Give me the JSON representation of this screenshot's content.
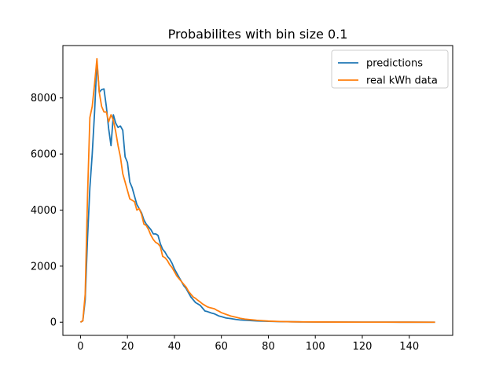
{
  "chart_data": {
    "type": "line",
    "title": "Probabilites with bin size 0.1",
    "xlabel": "",
    "ylabel": "",
    "xlim": [
      -7.5,
      158.5
    ],
    "ylim": [
      -470,
      9870
    ],
    "x_ticks": [
      0,
      20,
      40,
      60,
      80,
      100,
      120,
      140
    ],
    "y_ticks": [
      0,
      2000,
      4000,
      6000,
      8000
    ],
    "grid": false,
    "legend": "top-right",
    "series": [
      {
        "name": "predictions",
        "color": "#1f77b4",
        "points": [
          [
            0,
            0
          ],
          [
            1,
            50
          ],
          [
            2,
            800
          ],
          [
            3,
            3000
          ],
          [
            4,
            4800
          ],
          [
            5,
            6000
          ],
          [
            6,
            7500
          ],
          [
            7,
            9300
          ],
          [
            8,
            8200
          ],
          [
            9,
            8300
          ],
          [
            10,
            8320
          ],
          [
            11,
            7700
          ],
          [
            12,
            6900
          ],
          [
            13,
            6300
          ],
          [
            14,
            7400
          ],
          [
            15,
            7100
          ],
          [
            16,
            6950
          ],
          [
            17,
            7000
          ],
          [
            18,
            6850
          ],
          [
            19,
            5900
          ],
          [
            20,
            5700
          ],
          [
            21,
            5000
          ],
          [
            22,
            4800
          ],
          [
            23,
            4500
          ],
          [
            24,
            4200
          ],
          [
            25,
            4050
          ],
          [
            26,
            3900
          ],
          [
            27,
            3650
          ],
          [
            28,
            3500
          ],
          [
            29,
            3400
          ],
          [
            30,
            3300
          ],
          [
            31,
            3150
          ],
          [
            32,
            3150
          ],
          [
            33,
            3100
          ],
          [
            34,
            2800
          ],
          [
            35,
            2600
          ],
          [
            36,
            2500
          ],
          [
            37,
            2350
          ],
          [
            38,
            2250
          ],
          [
            39,
            2100
          ],
          [
            40,
            1900
          ],
          [
            41,
            1750
          ],
          [
            42,
            1600
          ],
          [
            43,
            1450
          ],
          [
            44,
            1300
          ],
          [
            45,
            1200
          ],
          [
            46,
            1050
          ],
          [
            47,
            900
          ],
          [
            48,
            800
          ],
          [
            49,
            700
          ],
          [
            50,
            650
          ],
          [
            51,
            600
          ],
          [
            52,
            500
          ],
          [
            53,
            400
          ],
          [
            54,
            380
          ],
          [
            55,
            350
          ],
          [
            56,
            320
          ],
          [
            57,
            300
          ],
          [
            58,
            260
          ],
          [
            59,
            220
          ],
          [
            60,
            200
          ],
          [
            62,
            150
          ],
          [
            64,
            130
          ],
          [
            66,
            100
          ],
          [
            68,
            80
          ],
          [
            70,
            70
          ],
          [
            75,
            45
          ],
          [
            80,
            30
          ],
          [
            85,
            20
          ],
          [
            90,
            15
          ],
          [
            95,
            10
          ],
          [
            100,
            8
          ],
          [
            110,
            5
          ],
          [
            120,
            3
          ],
          [
            130,
            2
          ],
          [
            140,
            1
          ],
          [
            151,
            0
          ]
        ]
      },
      {
        "name": "real kWh data",
        "color": "#ff7f0e",
        "points": [
          [
            0,
            0
          ],
          [
            1,
            50
          ],
          [
            2,
            1000
          ],
          [
            3,
            4500
          ],
          [
            4,
            7300
          ],
          [
            5,
            7700
          ],
          [
            6,
            8500
          ],
          [
            7,
            9400
          ],
          [
            8,
            8200
          ],
          [
            9,
            7700
          ],
          [
            10,
            7500
          ],
          [
            11,
            7500
          ],
          [
            12,
            7150
          ],
          [
            13,
            7400
          ],
          [
            14,
            7200
          ],
          [
            15,
            6800
          ],
          [
            16,
            6300
          ],
          [
            17,
            5900
          ],
          [
            18,
            5300
          ],
          [
            19,
            5000
          ],
          [
            20,
            4700
          ],
          [
            21,
            4400
          ],
          [
            22,
            4350
          ],
          [
            23,
            4300
          ],
          [
            24,
            4000
          ],
          [
            25,
            4050
          ],
          [
            26,
            3850
          ],
          [
            27,
            3500
          ],
          [
            28,
            3450
          ],
          [
            29,
            3300
          ],
          [
            30,
            3100
          ],
          [
            31,
            2950
          ],
          [
            32,
            2850
          ],
          [
            33,
            2800
          ],
          [
            34,
            2700
          ],
          [
            35,
            2350
          ],
          [
            36,
            2300
          ],
          [
            37,
            2200
          ],
          [
            38,
            2050
          ],
          [
            39,
            1950
          ],
          [
            40,
            1800
          ],
          [
            41,
            1650
          ],
          [
            42,
            1550
          ],
          [
            43,
            1450
          ],
          [
            44,
            1350
          ],
          [
            45,
            1250
          ],
          [
            46,
            1100
          ],
          [
            47,
            1000
          ],
          [
            48,
            900
          ],
          [
            49,
            850
          ],
          [
            50,
            780
          ],
          [
            51,
            720
          ],
          [
            52,
            650
          ],
          [
            53,
            600
          ],
          [
            54,
            550
          ],
          [
            55,
            520
          ],
          [
            56,
            500
          ],
          [
            57,
            480
          ],
          [
            58,
            430
          ],
          [
            59,
            390
          ],
          [
            60,
            340
          ],
          [
            62,
            280
          ],
          [
            64,
            220
          ],
          [
            66,
            180
          ],
          [
            68,
            140
          ],
          [
            70,
            110
          ],
          [
            75,
            70
          ],
          [
            80,
            40
          ],
          [
            85,
            25
          ],
          [
            90,
            15
          ],
          [
            95,
            10
          ],
          [
            100,
            8
          ],
          [
            110,
            5
          ],
          [
            120,
            3
          ],
          [
            130,
            2
          ],
          [
            140,
            1
          ],
          [
            151,
            0
          ]
        ]
      }
    ]
  }
}
